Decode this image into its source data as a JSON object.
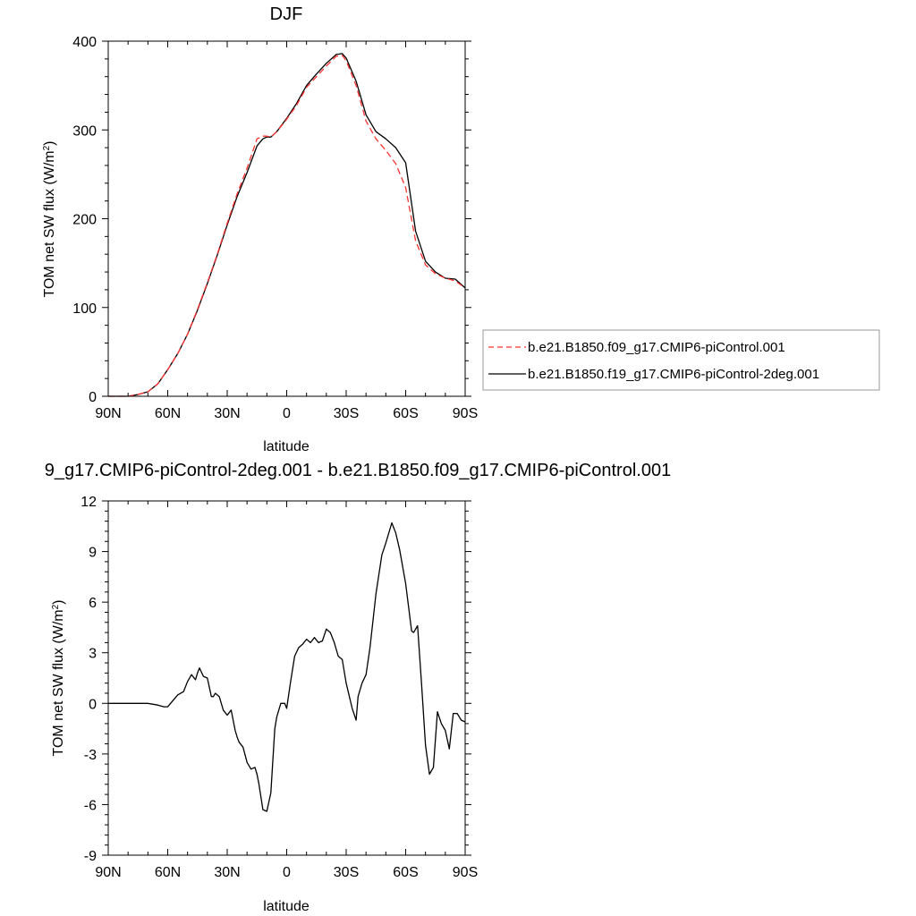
{
  "colors": {
    "series_control": "#ff3030",
    "series_2deg": "#000000",
    "difference": "#000000"
  },
  "legend": {
    "entries": [
      "b.e21.B1850.f09_g17.CMIP6-piControl.001",
      "b.e21.B1850.f19_g17.CMIP6-piControl-2deg.001"
    ]
  },
  "chart_data": [
    {
      "type": "line",
      "title": "DJF",
      "xlabel": "latitude",
      "ylabel_main": "TOM net SW flux (W/m",
      "ylabel_sup": "2",
      "ylabel_tail": ")",
      "xlim": [
        -90,
        90
      ],
      "ylim": [
        0,
        400
      ],
      "xticks": [
        -90,
        -60,
        -30,
        0,
        30,
        60,
        90
      ],
      "xtick_labels": [
        "90N",
        "60N",
        "30N",
        "0",
        "30S",
        "60S",
        "90S"
      ],
      "yticks": [
        0,
        100,
        200,
        300,
        400
      ],
      "ytick_labels": [
        "0",
        "100",
        "200",
        "300",
        "400"
      ],
      "series": [
        {
          "name": "b.e21.B1850.f09_g17.CMIP6-piControl.001",
          "style": "dashed",
          "x": [
            -90,
            -80,
            -75,
            -70,
            -65,
            -60,
            -55,
            -50,
            -45,
            -40,
            -35,
            -30,
            -25,
            -20,
            -15,
            -12,
            -10,
            -8,
            -5,
            0,
            5,
            10,
            15,
            20,
            25,
            28,
            30,
            35,
            40,
            45,
            50,
            55,
            60,
            65,
            70,
            75,
            80,
            85,
            90
          ],
          "y": [
            0,
            0,
            2,
            5,
            14,
            30,
            48,
            70,
            98,
            128,
            160,
            195,
            228,
            257,
            290,
            293,
            293,
            292,
            298,
            312,
            328,
            348,
            360,
            372,
            383,
            384,
            378,
            350,
            310,
            290,
            277,
            262,
            235,
            175,
            148,
            138,
            133,
            130,
            122
          ]
        },
        {
          "name": "b.e21.B1850.f19_g17.CMIP6-piControl-2deg.001",
          "style": "solid",
          "x": [
            -90,
            -80,
            -75,
            -70,
            -65,
            -60,
            -55,
            -50,
            -45,
            -40,
            -35,
            -30,
            -25,
            -20,
            -15,
            -12,
            -10,
            -8,
            -5,
            0,
            5,
            10,
            15,
            20,
            25,
            28,
            30,
            35,
            40,
            45,
            50,
            55,
            60,
            65,
            70,
            75,
            80,
            85,
            90
          ],
          "y": [
            0,
            0,
            2,
            5,
            14,
            30,
            48,
            70,
            97,
            127,
            159,
            193,
            225,
            252,
            282,
            290,
            292,
            292,
            298,
            313,
            330,
            350,
            363,
            375,
            385,
            386,
            381,
            355,
            317,
            298,
            290,
            280,
            263,
            186,
            152,
            140,
            133,
            132,
            122
          ]
        }
      ]
    },
    {
      "type": "line",
      "title": "9_g17.CMIP6-piControl-2deg.001 - b.e21.B1850.f09_g17.CMIP6-piControl.001",
      "xlabel": "latitude",
      "ylabel_main": "TOM net SW flux (W/m",
      "ylabel_sup": "2",
      "ylabel_tail": ")",
      "xlim": [
        -90,
        90
      ],
      "ylim": [
        -9,
        12
      ],
      "xticks": [
        -90,
        -60,
        -30,
        0,
        30,
        60,
        90
      ],
      "xtick_labels": [
        "90N",
        "60N",
        "30N",
        "0",
        "30S",
        "60S",
        "90S"
      ],
      "yticks": [
        -9,
        -6,
        -3,
        0,
        3,
        6,
        9,
        12
      ],
      "ytick_labels": [
        "-9",
        "-6",
        "-3",
        "0",
        "3",
        "6",
        "9",
        "12"
      ],
      "series": [
        {
          "name": "difference",
          "style": "solid",
          "x": [
            -90,
            -70,
            -65,
            -62,
            -60,
            -55,
            -52,
            -50,
            -48,
            -46,
            -45,
            -44,
            -42,
            -40,
            -38,
            -37,
            -36,
            -34,
            -32,
            -30,
            -28,
            -26,
            -25,
            -24,
            -22,
            -20,
            -18,
            -16,
            -15,
            -14,
            -12,
            -10,
            -8,
            -6,
            -5,
            -3,
            -1,
            0,
            2,
            4,
            6,
            8,
            10,
            12,
            14,
            16,
            18,
            20,
            22,
            24,
            26,
            28,
            30,
            33,
            35,
            36,
            38,
            40,
            42,
            45,
            48,
            50,
            53,
            55,
            57,
            60,
            63,
            64,
            66,
            68,
            70,
            72,
            74,
            76,
            78,
            80,
            82,
            84,
            86,
            88,
            90
          ],
          "y": [
            0,
            0,
            -0.1,
            -0.2,
            -0.2,
            0.5,
            0.7,
            1.3,
            1.7,
            1.4,
            1.8,
            2.1,
            1.6,
            1.5,
            0.4,
            0.4,
            0.6,
            0.4,
            -0.4,
            -0.7,
            -0.4,
            -1.6,
            -2,
            -2.3,
            -2.6,
            -3.5,
            -3.9,
            -3.8,
            -4.2,
            -4.8,
            -6.3,
            -6.4,
            -5.3,
            -1.5,
            -0.8,
            0,
            0,
            -0.3,
            1.3,
            2.8,
            3.3,
            3.5,
            3.8,
            3.6,
            3.9,
            3.6,
            3.7,
            4.4,
            4.2,
            3.6,
            2.8,
            2.6,
            1.2,
            -0.3,
            -1,
            0.4,
            1.2,
            1.7,
            3.3,
            6.5,
            8.8,
            9.5,
            10.7,
            10.1,
            9.1,
            7.1,
            4.3,
            4.2,
            4.6,
            1.2,
            -2.5,
            -4.2,
            -3.8,
            -0.5,
            -1.2,
            -1.6,
            -2.7,
            -0.6,
            -0.6,
            -1.0,
            -1.1
          ]
        }
      ]
    }
  ]
}
